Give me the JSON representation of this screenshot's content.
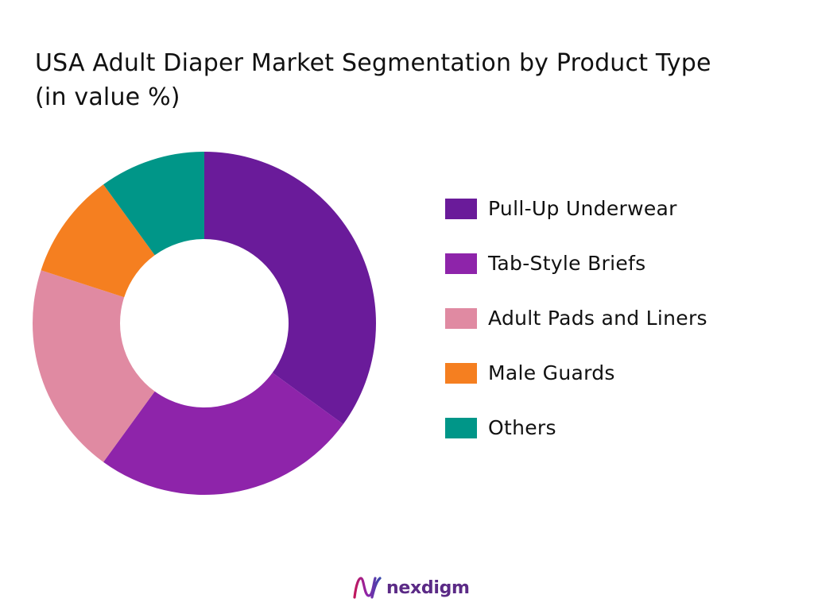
{
  "chart_data": {
    "type": "pie",
    "variant": "donut",
    "title_lines": [
      "USA Adult Diaper Market Segmentation by Product Type",
      "(in value %)"
    ],
    "categories": [
      "Pull-Up Underwear",
      "Tab-Style Briefs",
      "Adult Pads and Liners",
      "Male Guards",
      "Others"
    ],
    "values": [
      35,
      25,
      20,
      10,
      10
    ],
    "colors": [
      "#6a1b9a",
      "#8e24aa",
      "#e08aa2",
      "#f57f20",
      "#009688"
    ],
    "legend_position": "right",
    "data_labels": false
  },
  "branding": {
    "logo_text": "nexdigm",
    "logo_color": "#5b2a86"
  }
}
